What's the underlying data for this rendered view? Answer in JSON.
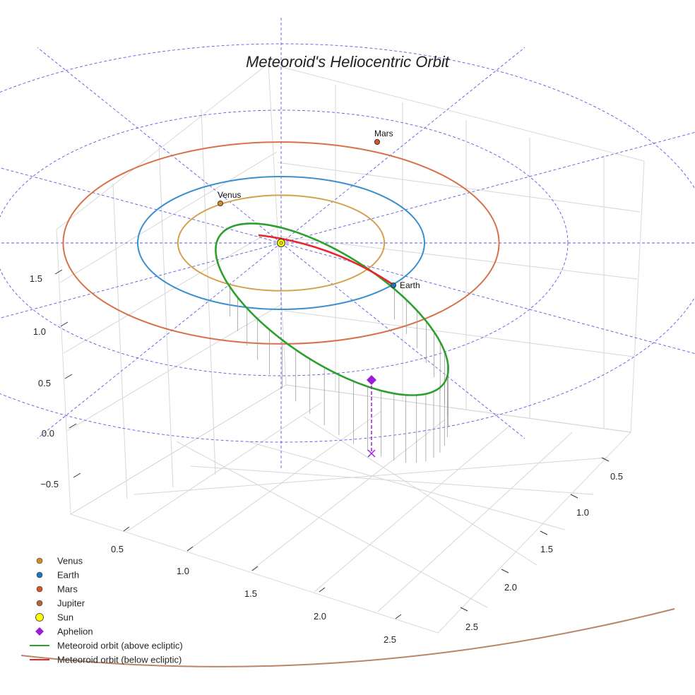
{
  "chart_data": {
    "type": "3d-line",
    "title": "Meteoroid's Heliocentric Orbit",
    "axes": {
      "x_ticks": [
        "0.5",
        "1.0",
        "1.5",
        "2.0",
        "2.5"
      ],
      "y_ticks": [
        "0.5",
        "1.0",
        "1.5",
        "2.0",
        "2.5"
      ],
      "z_ticks": [
        "1.5",
        "1.0",
        "0.5",
        "0.0",
        "−0.5"
      ]
    },
    "planets": [
      {
        "name": "Venus",
        "orbit_radius_au": 0.72,
        "color": "#d4a04c",
        "marker_color": "#d08c2a"
      },
      {
        "name": "Earth",
        "orbit_radius_au": 1.0,
        "color": "#3a8fcf",
        "marker_color": "#1f77b4"
      },
      {
        "name": "Mars",
        "orbit_radius_au": 1.52,
        "color": "#d9704a",
        "marker_color": "#d2572a"
      },
      {
        "name": "Jupiter",
        "orbit_radius_au": 5.2,
        "color": "#b9866a",
        "marker_color": "#b5643a"
      }
    ],
    "sun": {
      "name": "Sun",
      "color": "#ffff00"
    },
    "aphelion": {
      "name": "Aphelion",
      "color": "#9b1fd6"
    },
    "orbit_series": [
      {
        "name": "Meteoroid orbit (above ecliptic)",
        "color": "#2ca02c"
      },
      {
        "name": "Meteoroid orbit (below ecliptic)",
        "color": "#e8262d"
      }
    ],
    "legend": [
      "Venus",
      "Earth",
      "Mars",
      "Jupiter",
      "Sun",
      "Aphelion",
      "Meteoroid orbit (above ecliptic)",
      "Meteoroid orbit (below ecliptic)"
    ],
    "legend_position": "bottom-left"
  }
}
